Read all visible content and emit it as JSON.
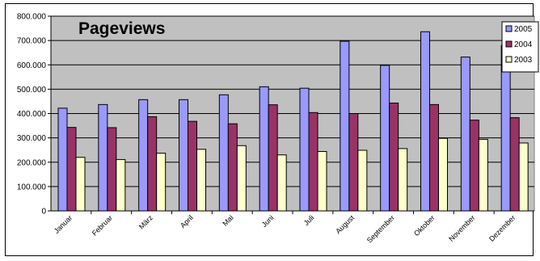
{
  "chart_data": {
    "type": "bar",
    "title": "Pageviews",
    "categories": [
      "Januar",
      "Februar",
      "März",
      "April",
      "Mai",
      "Juni",
      "Juli",
      "August",
      "September",
      "Oktober",
      "November",
      "Dezember"
    ],
    "series": [
      {
        "name": "2005",
        "color": "#9999ff",
        "values": [
          422000,
          437000,
          457000,
          457000,
          477000,
          510000,
          504000,
          697000,
          598000,
          736000,
          632000,
          680000
        ]
      },
      {
        "name": "2004",
        "color": "#993366",
        "values": [
          343000,
          342000,
          387000,
          368000,
          358000,
          436000,
          404000,
          400000,
          443000,
          437000,
          373000,
          383000
        ]
      },
      {
        "name": "2003",
        "color": "#ffffcc",
        "values": [
          220000,
          211000,
          237000,
          253000,
          268000,
          230000,
          244000,
          249000,
          256000,
          298000,
          294000,
          279000
        ]
      }
    ],
    "yticks": [
      "0",
      "100.000",
      "200.000",
      "300.000",
      "400.000",
      "500.000",
      "600.000",
      "700.000",
      "800.000"
    ],
    "ylim": [
      0,
      800000
    ],
    "grid": true,
    "legend": "top-right",
    "plot_background": "#c0c0c0"
  }
}
